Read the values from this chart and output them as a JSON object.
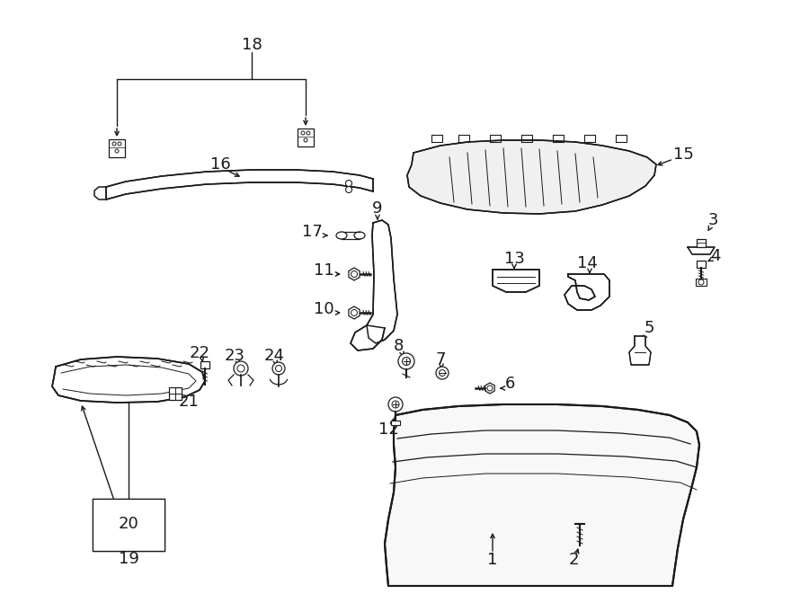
{
  "background": "#ffffff",
  "line_color": "#1a1a1a",
  "lw": 1.1,
  "parts_label_fontsize": 13
}
